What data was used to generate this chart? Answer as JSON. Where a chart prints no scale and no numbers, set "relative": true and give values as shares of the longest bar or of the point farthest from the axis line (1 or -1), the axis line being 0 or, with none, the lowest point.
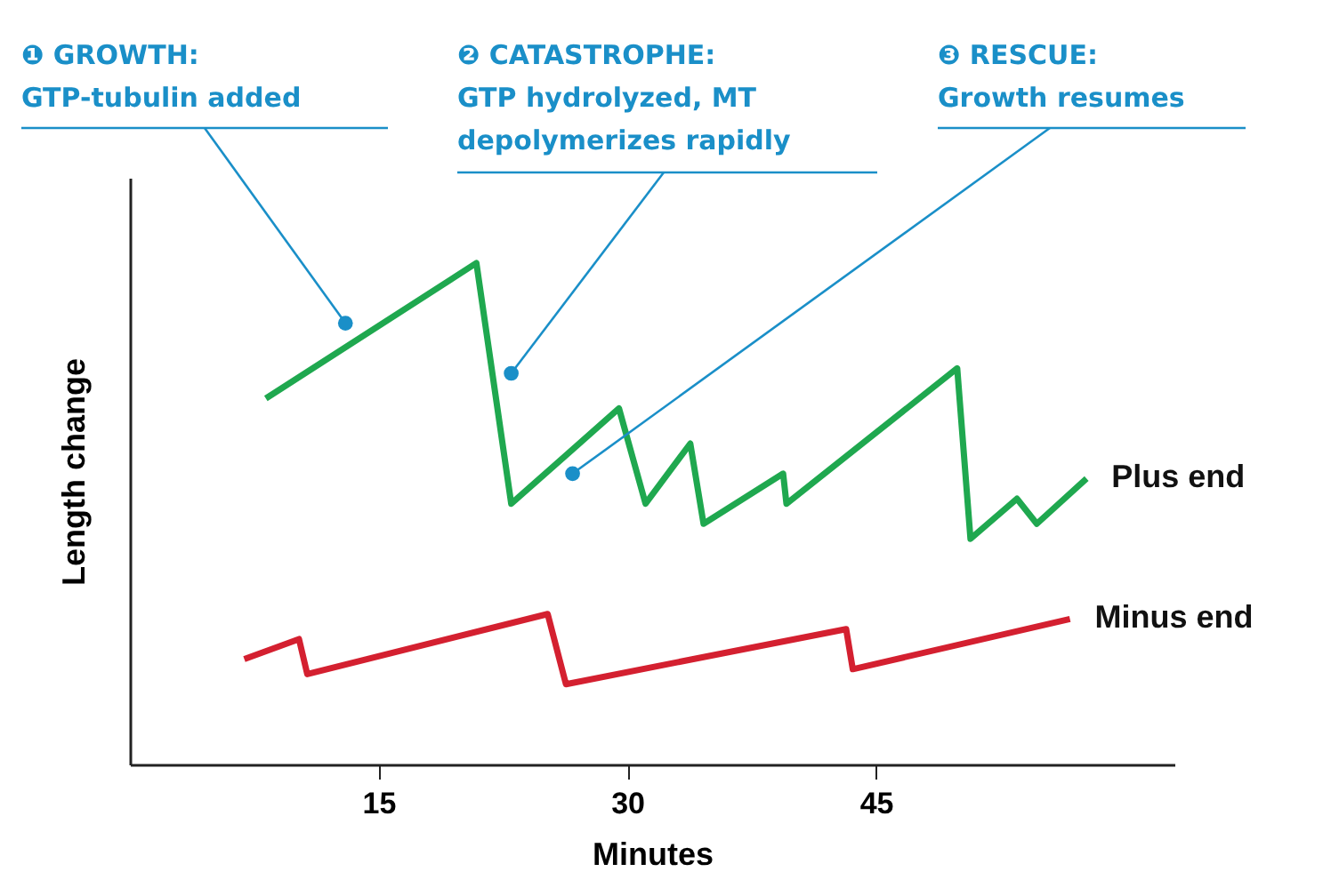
{
  "chart_data": {
    "type": "line",
    "relative": true,
    "xlabel": "Minutes",
    "ylabel": "Length change",
    "xlim": [
      0,
      63
    ],
    "xticks": [
      15,
      30,
      45
    ],
    "legend": false,
    "grid": false,
    "marker": "none",
    "line_style": "solid",
    "series": [
      {
        "name": "Plus end",
        "color": "#1fa84f",
        "x": [
          8.2,
          20.9,
          23.0,
          29.5,
          31.1,
          33.8,
          34.6,
          39.4,
          39.6,
          49.9,
          50.7,
          53.5,
          54.7,
          57.7
        ],
        "values": [
          0.73,
          1.0,
          0.52,
          0.71,
          0.52,
          0.64,
          0.48,
          0.58,
          0.52,
          0.79,
          0.45,
          0.53,
          0.48,
          0.57
        ]
      },
      {
        "name": "Minus end",
        "color": "#d42030",
        "x": [
          6.9,
          10.2,
          10.7,
          25.2,
          26.3,
          43.2,
          43.6,
          56.7
        ],
        "values": [
          0.21,
          0.25,
          0.18,
          0.3,
          0.16,
          0.27,
          0.19,
          0.29
        ]
      }
    ],
    "annotations": [
      {
        "text": "❶ GROWTH:\nGTP-tubulin added",
        "x": 13.0,
        "y": 0.88
      },
      {
        "text": "❷ CATASTROPHE:\nGTP hydrolyzed, MT\ndepolymerizes rapidly",
        "x": 23.0,
        "y": 0.78
      },
      {
        "text": "❸ RESCUE:\nGrowth resumes",
        "x": 26.7,
        "y": 0.58
      }
    ]
  }
}
